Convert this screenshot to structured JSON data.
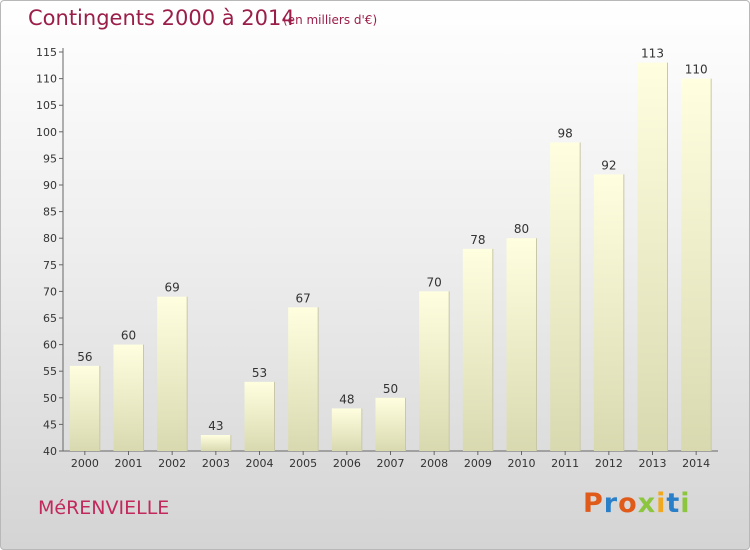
{
  "header": {
    "title": "Contingents 2000 à 2014",
    "subtitle": "(en milliers d'€)"
  },
  "footer": {
    "commune": "MéRENVIELLE",
    "logo": "Proxiti"
  },
  "colors": {
    "title": "#9b1e4a",
    "bar_top": "#ffffe0",
    "bar_bottom": "#d9d9b0",
    "logo_letters": [
      "#e05a1a",
      "#2a7fc9",
      "#e05a1a",
      "#8cc63f",
      "#f0a81e",
      "#2a7fc9",
      "#8cc63f"
    ]
  },
  "chart_data": {
    "type": "bar",
    "title": "Contingents 2000 à 2014",
    "subtitle": "(en milliers d'€)",
    "categories": [
      "2000",
      "2001",
      "2002",
      "2003",
      "2004",
      "2005",
      "2006",
      "2007",
      "2008",
      "2009",
      "2010",
      "2011",
      "2012",
      "2013",
      "2014"
    ],
    "values": [
      56,
      60,
      69,
      43,
      53,
      67,
      48,
      50,
      70,
      78,
      80,
      98,
      92,
      113,
      110
    ],
    "ylim": [
      40,
      115
    ],
    "yticks": [
      40,
      45,
      50,
      55,
      60,
      65,
      70,
      75,
      80,
      85,
      90,
      95,
      100,
      105,
      110,
      115
    ],
    "grid": false,
    "legend": "none"
  }
}
